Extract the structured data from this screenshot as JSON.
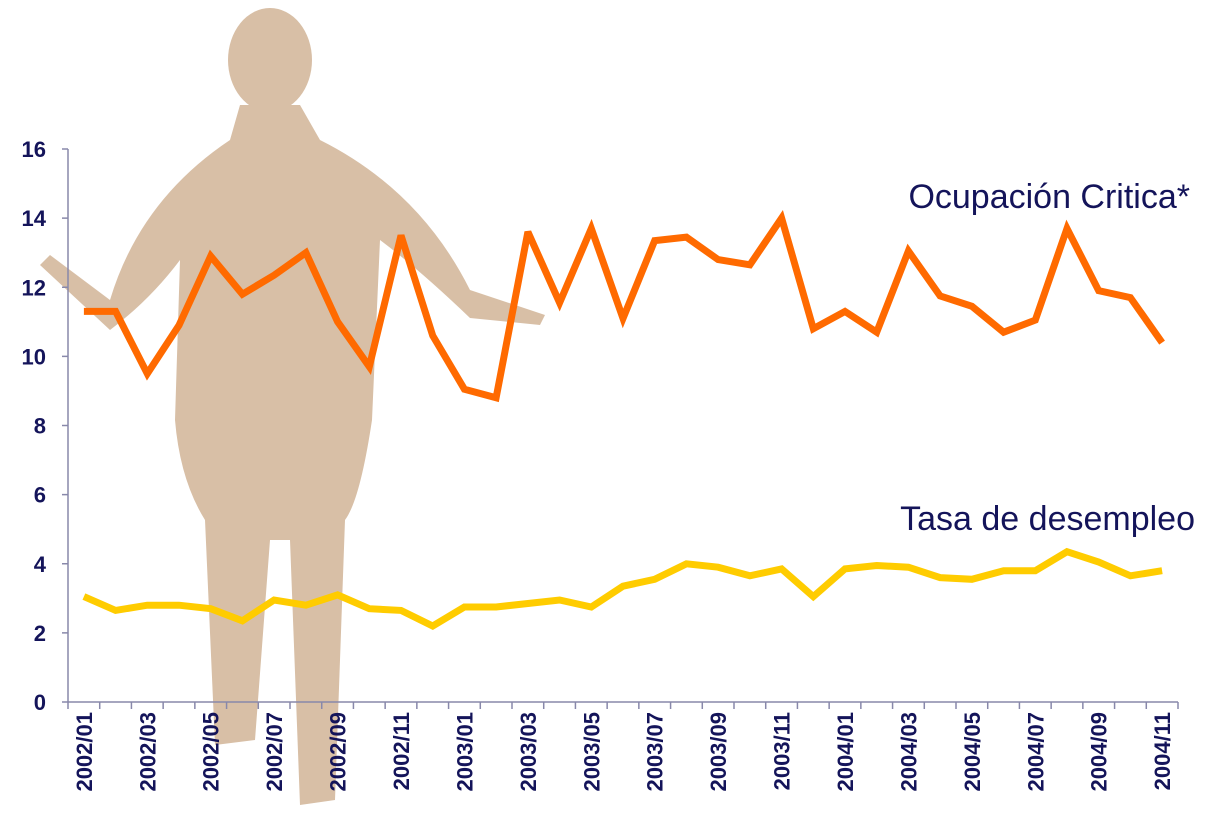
{
  "chart_data": {
    "type": "line",
    "categories": [
      "2002/01",
      null,
      "2002/03",
      null,
      "2002/05",
      null,
      "2002/07",
      null,
      "2002/09",
      null,
      "2002/11",
      null,
      "2003/01",
      null,
      "2003/03",
      null,
      "2003/05",
      null,
      "2003/07",
      null,
      "2003/09",
      null,
      "2003/11",
      null,
      "2004/01",
      null,
      "2004/03",
      null,
      "2004/05",
      null,
      "2004/07",
      null,
      "2004/09",
      null,
      "2004/11"
    ],
    "series": [
      {
        "name": "Ocupación Critica*",
        "color": "#ff6a00",
        "values": [
          11.3,
          11.3,
          9.5,
          10.9,
          12.9,
          11.8,
          12.35,
          13.0,
          11.0,
          9.7,
          13.5,
          10.6,
          9.05,
          8.8,
          13.6,
          11.55,
          13.7,
          11.1,
          13.35,
          13.45,
          12.8,
          12.65,
          14.0,
          10.8,
          11.3,
          10.7,
          13.05,
          11.75,
          11.45,
          10.7,
          11.05,
          13.7,
          11.9,
          11.7,
          10.4
        ]
      },
      {
        "name": "Tasa de desempleo",
        "color": "#ffcc00",
        "values": [
          3.05,
          2.65,
          2.8,
          2.8,
          2.7,
          2.35,
          2.95,
          2.8,
          3.1,
          2.7,
          2.65,
          2.2,
          2.75,
          2.75,
          2.85,
          2.95,
          2.75,
          3.35,
          3.55,
          4.0,
          3.9,
          3.65,
          3.85,
          3.05,
          3.85,
          3.95,
          3.9,
          3.6,
          3.55,
          3.8,
          3.8,
          4.35,
          4.05,
          3.65,
          3.8
        ]
      }
    ],
    "ylim": [
      0,
      16
    ],
    "yticks": [
      0,
      2,
      4,
      6,
      8,
      10,
      12,
      14,
      16
    ]
  }
}
